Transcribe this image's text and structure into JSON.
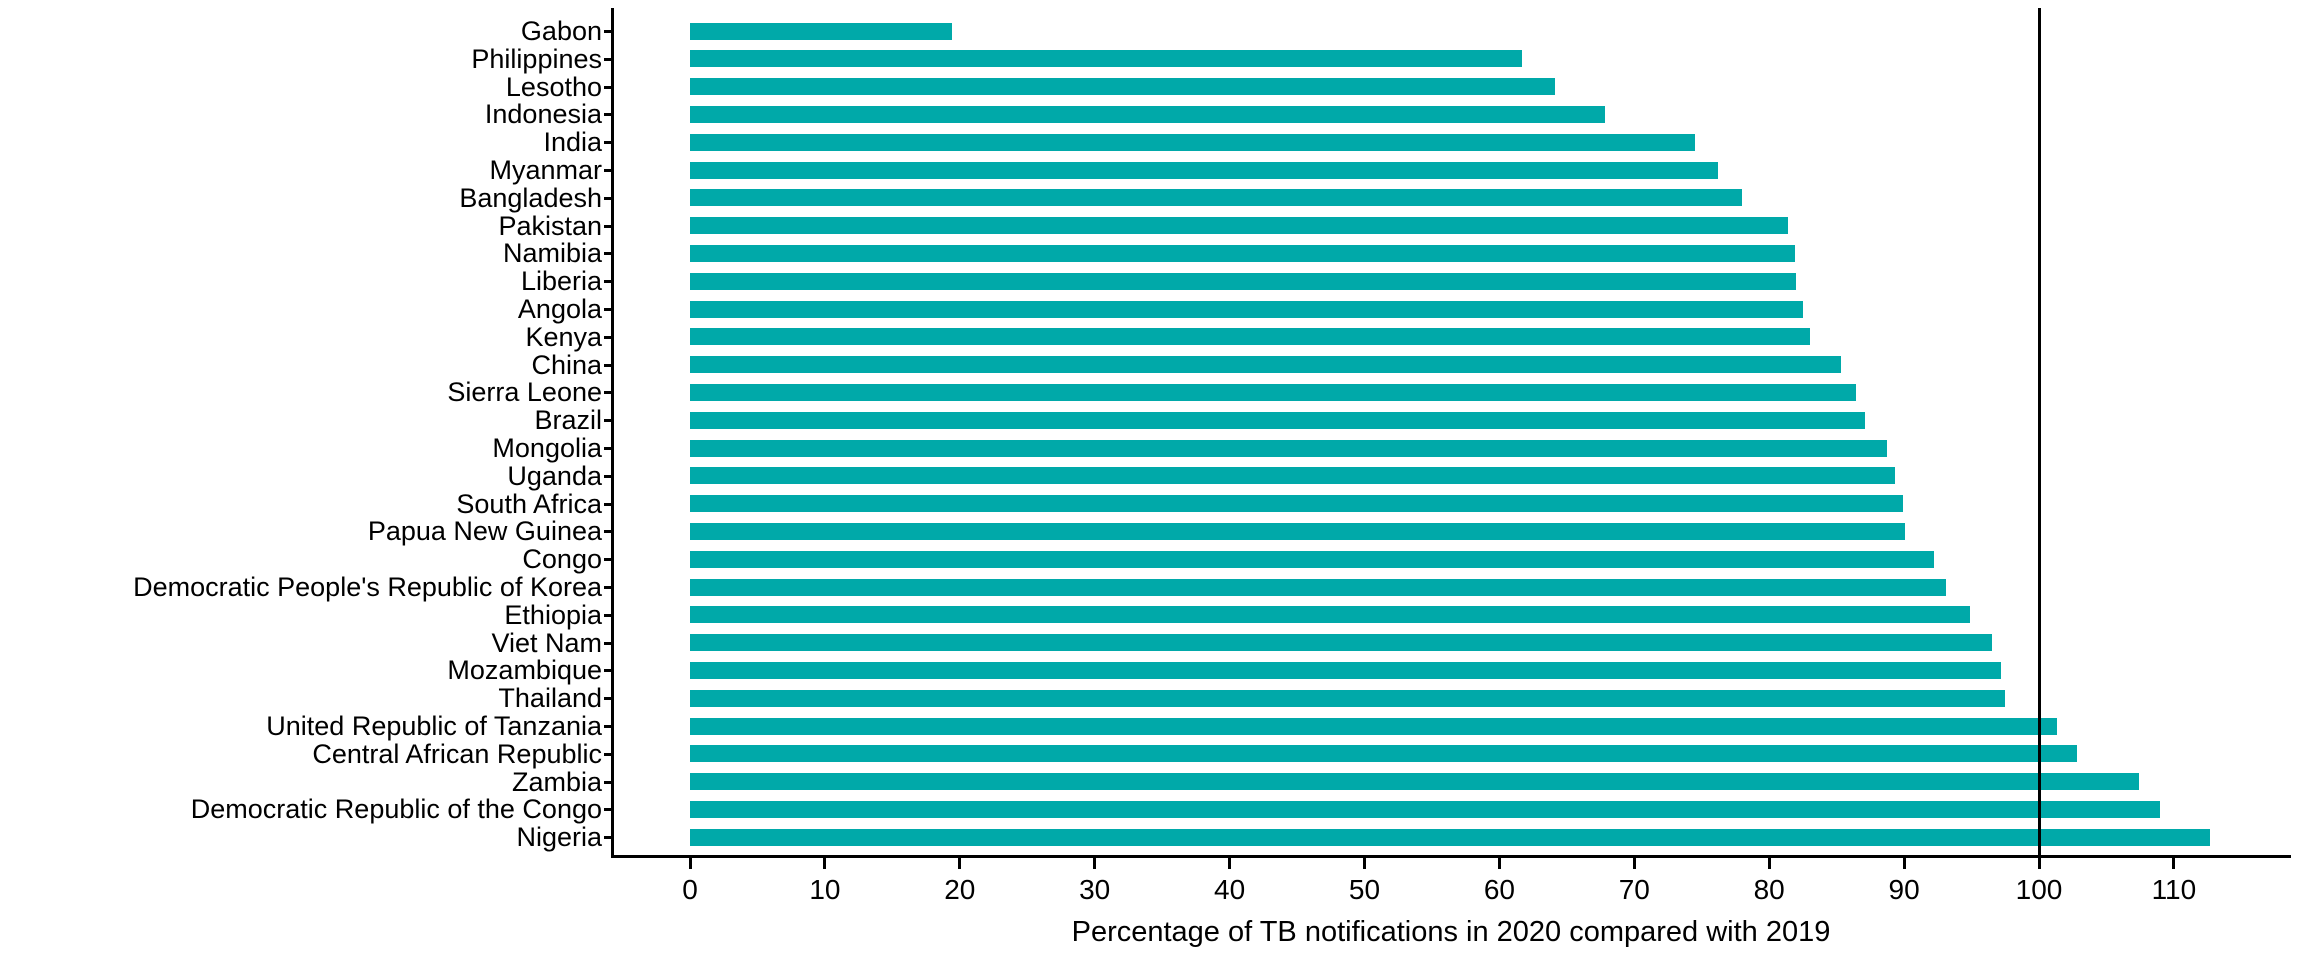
{
  "chart_data": {
    "type": "bar",
    "orientation": "horizontal",
    "title": "",
    "xlabel": "Percentage of TB notifications in 2020 compared with 2019",
    "ylabel": "",
    "categories": [
      "Gabon",
      "Philippines",
      "Lesotho",
      "Indonesia",
      "India",
      "Myanmar",
      "Bangladesh",
      "Pakistan",
      "Namibia",
      "Liberia",
      "Angola",
      "Kenya",
      "China",
      "Sierra Leone",
      "Brazil",
      "Mongolia",
      "Uganda",
      "South Africa",
      "Papua New Guinea",
      "Congo",
      "Democratic People's Republic of Korea",
      "Ethiopia",
      "Viet Nam",
      "Mozambique",
      "Thailand",
      "United Republic of Tanzania",
      "Central African Republic",
      "Zambia",
      "Democratic Republic of the Congo",
      "Nigeria"
    ],
    "values": [
      19.4,
      61.7,
      64.1,
      67.8,
      74.5,
      76.2,
      78.0,
      81.4,
      81.9,
      82.0,
      82.5,
      83.0,
      85.3,
      86.4,
      87.1,
      88.7,
      89.3,
      89.9,
      90.1,
      92.2,
      93.1,
      94.9,
      96.5,
      97.2,
      97.5,
      101.3,
      102.8,
      107.4,
      109.0,
      112.7
    ],
    "x_ticks": [
      0,
      10,
      20,
      30,
      40,
      50,
      60,
      70,
      80,
      90,
      100,
      110
    ],
    "xlim": [
      0,
      118.5
    ],
    "reference_line_x": 100,
    "bar_color": "#00A9A9",
    "axis_color": "#000000",
    "text_color": "#000000",
    "grid": false,
    "legend": false
  }
}
